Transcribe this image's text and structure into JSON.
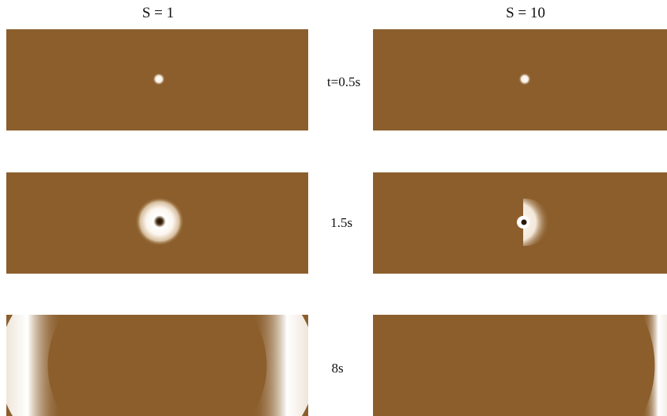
{
  "columns": [
    {
      "label": "S = 1"
    },
    {
      "label": "S = 10"
    }
  ],
  "rows": [
    {
      "label": "t=0.5s"
    },
    {
      "label": "1.5s"
    },
    {
      "label": "8s"
    }
  ],
  "colors": {
    "field": "#8b5e2c",
    "wave": "#ffffff"
  }
}
